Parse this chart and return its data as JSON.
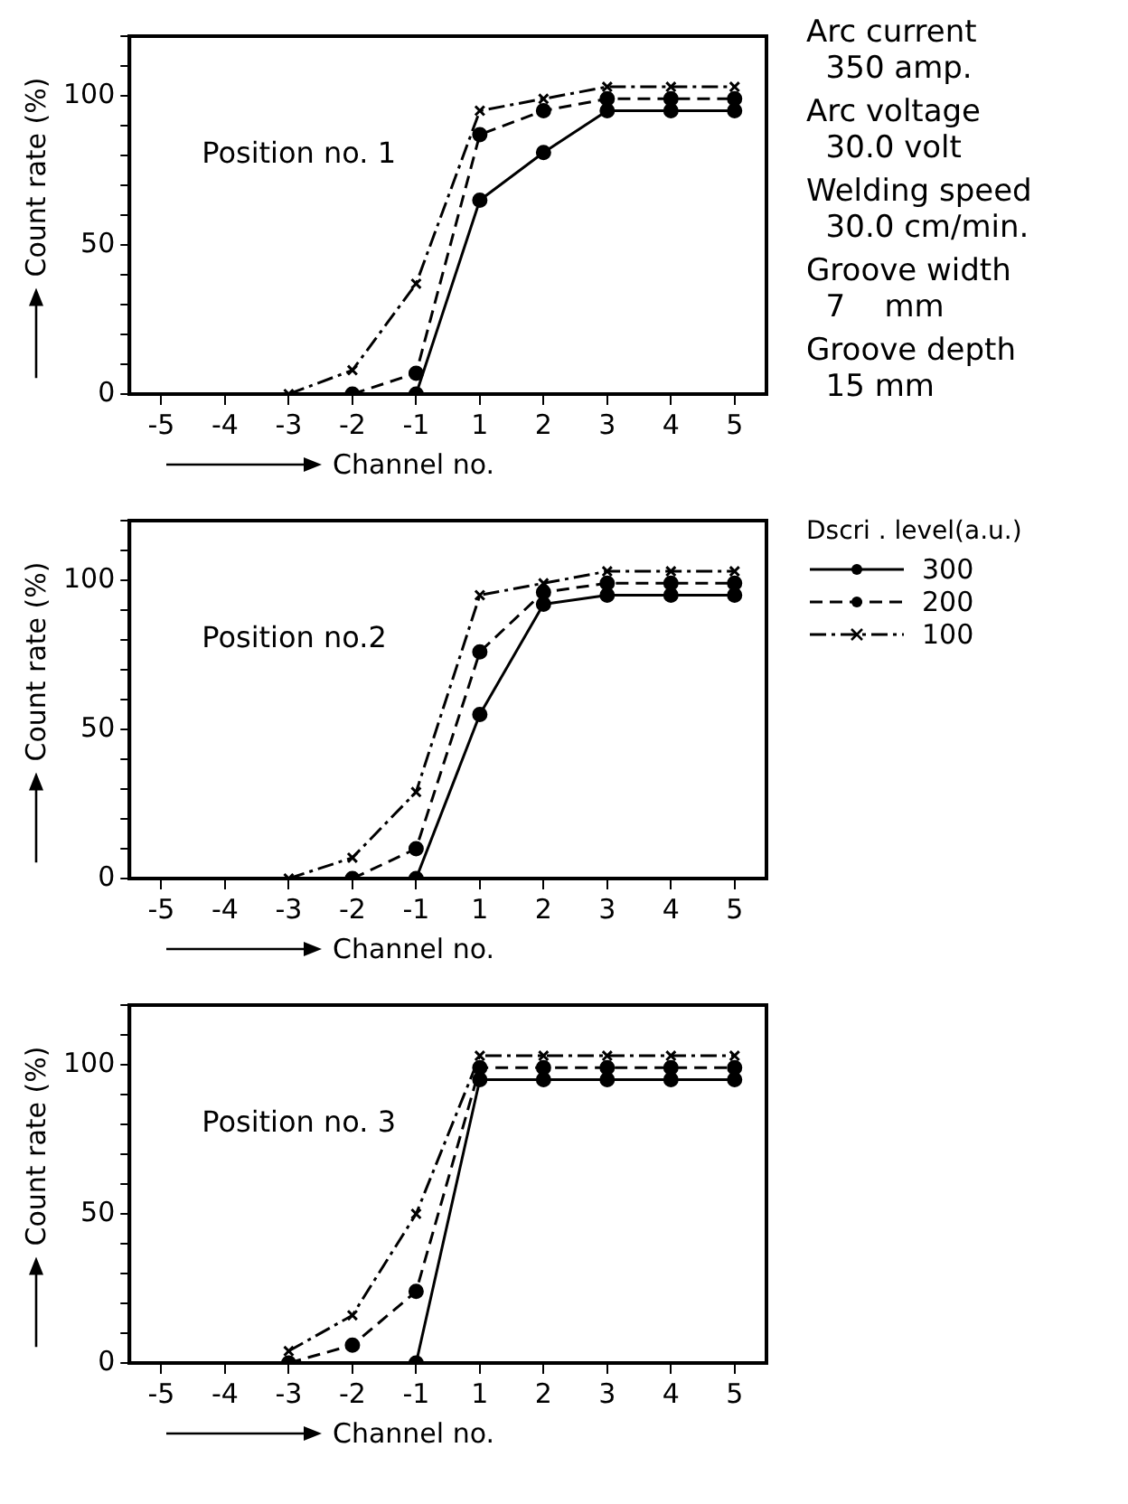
{
  "chart_data": [
    {
      "type": "line",
      "title": "Position no. 1",
      "xlabel": "Channel no.",
      "ylabel": "Count rate (%)",
      "categories": [
        "-5",
        "-4",
        "-3",
        "-2",
        "-1",
        "1",
        "2",
        "3",
        "4",
        "5"
      ],
      "ylim": [
        0,
        120
      ],
      "yticks": [
        0,
        {
          "value": 10,
          "label": null
        },
        {
          "value": 20,
          "label": null
        },
        {
          "value": 30,
          "label": null
        },
        {
          "value": 40,
          "label": null
        },
        50,
        {
          "value": 60,
          "label": null
        },
        {
          "value": 70,
          "label": null
        },
        {
          "value": 80,
          "label": null
        },
        {
          "value": 90,
          "label": null
        },
        100,
        {
          "value": 110,
          "label": null
        },
        {
          "value": 120,
          "label": null
        }
      ],
      "grid": false,
      "annotations": [
        "Arc current\n  350 amp.",
        "Arc voltage\n  30.0 volt",
        "Welding speed\n  30.0 cm/min.",
        "Groove width\n  7    mm",
        "Groove depth\n  15 mm"
      ],
      "series": [
        {
          "color": "#000000",
          "line_style": "solid",
          "marker": "circle",
          "values": [
            null,
            null,
            null,
            null,
            0,
            65,
            81,
            95,
            95,
            95
          ]
        },
        {
          "color": "#000000",
          "line_style": "dashed",
          "marker": "circle",
          "values": [
            null,
            null,
            null,
            0,
            7,
            87,
            95,
            99,
            99,
            99
          ]
        },
        {
          "color": "#000000",
          "line_style": "dotted",
          "marker": "cross",
          "values": [
            null,
            null,
            0,
            8,
            37,
            95,
            99,
            103,
            103,
            103
          ]
        }
      ]
    },
    {
      "type": "line",
      "title": "Position no.2",
      "xlabel": "Channel no.",
      "ylabel": "Count rate (%)",
      "categories": [
        "-5",
        "-4",
        "-3",
        "-2",
        "-1",
        "1",
        "2",
        "3",
        "4",
        "5"
      ],
      "ylim": [
        0,
        120
      ],
      "yticks": [
        0,
        {
          "value": 10,
          "label": null
        },
        {
          "value": 20,
          "label": null
        },
        {
          "value": 30,
          "label": null
        },
        {
          "value": 40,
          "label": null
        },
        50,
        {
          "value": 60,
          "label": null
        },
        {
          "value": 70,
          "label": null
        },
        {
          "value": 80,
          "label": null
        },
        {
          "value": 90,
          "label": null
        },
        100,
        {
          "value": 110,
          "label": null
        },
        {
          "value": 120,
          "label": null
        }
      ],
      "grid": false,
      "legend": "right",
      "legend_title": "Dscri . level(a.u.)",
      "series": [
        {
          "name": "300",
          "color": "#000000",
          "line_style": "solid",
          "marker": "circle",
          "values": [
            null,
            null,
            null,
            null,
            0,
            55,
            92,
            95,
            95,
            95
          ]
        },
        {
          "name": "200",
          "color": "#000000",
          "line_style": "dashed",
          "marker": "circle",
          "values": [
            null,
            null,
            null,
            0,
            10,
            76,
            96,
            99,
            99,
            99
          ]
        },
        {
          "name": "100",
          "color": "#000000",
          "line_style": "dotted",
          "marker": "cross",
          "values": [
            null,
            null,
            0,
            7,
            29,
            95,
            99,
            103,
            103,
            103
          ]
        }
      ]
    },
    {
      "type": "line",
      "title": "Position no. 3",
      "xlabel": "Channel no.",
      "ylabel": "Count rate (%)",
      "categories": [
        "-5",
        "-4",
        "-3",
        "-2",
        "-1",
        "1",
        "2",
        "3",
        "4",
        "5"
      ],
      "ylim": [
        0,
        120
      ],
      "yticks": [
        0,
        {
          "value": 10,
          "label": null
        },
        {
          "value": 20,
          "label": null
        },
        {
          "value": 30,
          "label": null
        },
        {
          "value": 40,
          "label": null
        },
        50,
        {
          "value": 60,
          "label": null
        },
        {
          "value": 70,
          "label": null
        },
        {
          "value": 80,
          "label": null
        },
        {
          "value": 90,
          "label": null
        },
        100,
        {
          "value": 110,
          "label": null
        },
        {
          "value": 120,
          "label": null
        }
      ],
      "grid": false,
      "series": [
        {
          "color": "#000000",
          "line_style": "solid",
          "marker": "circle",
          "values": [
            null,
            null,
            null,
            null,
            0,
            95,
            95,
            95,
            95,
            95
          ]
        },
        {
          "color": "#000000",
          "line_style": "dashed",
          "marker": "circle",
          "values": [
            null,
            null,
            0,
            6,
            24,
            99,
            99,
            99,
            99,
            99
          ]
        },
        {
          "color": "#000000",
          "line_style": "dotted",
          "marker": "cross",
          "values": [
            null,
            null,
            4,
            16,
            50,
            103,
            103,
            103,
            103,
            103
          ]
        }
      ]
    }
  ]
}
